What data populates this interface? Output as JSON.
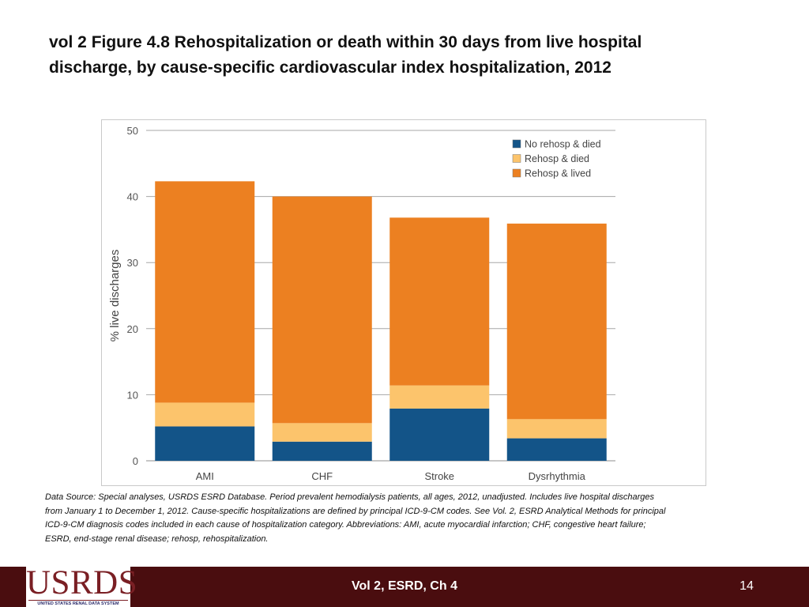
{
  "slide": {
    "title_line1": "vol 2 Figure 4.8 Rehospitalization or death within 30 days from live hospital",
    "title_line2": "discharge, by cause-specific cardiovascular index hospitalization, 2012",
    "footnote_line1": "Data Source: Special analyses, USRDS ESRD Database. Period prevalent hemodialysis patients, all ages, 2012, unadjusted. Includes live hospital discharges",
    "footnote_line2": "from January 1 to December 1, 2012. Cause-specific hospitalizations are defined by principal ICD-9-CM codes. See Vol. 2, ESRD Analytical Methods for principal",
    "footnote_line3": "ICD-9-CM diagnosis codes included in each cause of hospitalization category. Abbreviations: AMI, acute myocardial infarction; CHF, congestive heart failure;",
    "footnote_line4": "ESRD, end-stage renal disease; rehosp, rehospitalization.",
    "footer_center": "Vol 2, ESRD, Ch 4",
    "page_number": "14",
    "logo_text": "USRDS",
    "logo_subtext": "UNITED STATES RENAL DATA SYSTEM"
  },
  "colors": {
    "no_rehosp_died": "#135488",
    "rehosp_died": "#fcc46c",
    "rehosp_lived": "#ec8021",
    "footer_bg": "#4a0d0f"
  },
  "chart_data": {
    "type": "bar",
    "stacked": true,
    "categories": [
      "AMI",
      "CHF",
      "Stroke",
      "Dysrhythmia"
    ],
    "ylabel": "% live discharges",
    "xlabel": "",
    "ylim": [
      0,
      50
    ],
    "yticks": [
      0,
      10,
      20,
      30,
      40,
      50
    ],
    "grid": true,
    "legend_position": "top-right",
    "series": [
      {
        "name": "No rehosp & died",
        "values": [
          5.2,
          2.9,
          7.9,
          3.4
        ]
      },
      {
        "name": "Rehosp & died",
        "values": [
          3.6,
          2.8,
          3.5,
          2.9
        ]
      },
      {
        "name": "Rehosp & lived",
        "values": [
          33.5,
          34.3,
          25.4,
          29.6
        ]
      }
    ]
  }
}
